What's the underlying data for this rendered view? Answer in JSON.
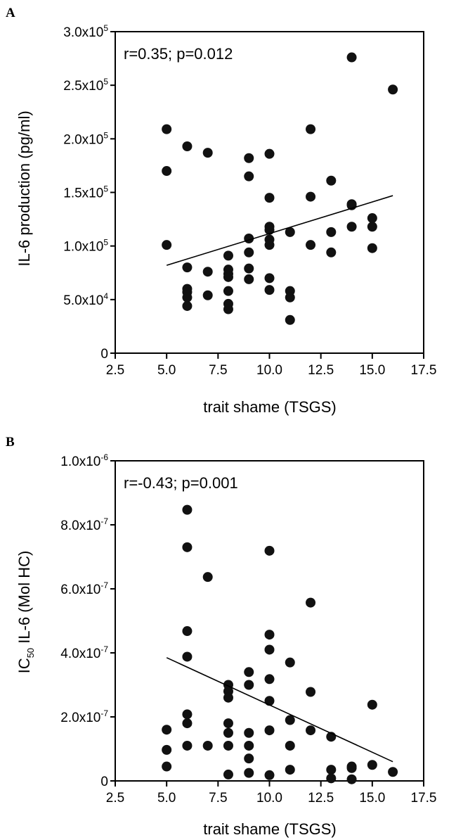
{
  "chart_data": [
    {
      "panel": "A",
      "type": "scatter",
      "annotation": "r=0.35; p=0.012",
      "xlabel": "trait shame (TSGS)",
      "ylabel": "IL-6 production (pg/ml)",
      "xlim": [
        2.5,
        17.5
      ],
      "ylim": [
        0,
        300000
      ],
      "xticks": [
        "2.5",
        "5.0",
        "7.5",
        "10.0",
        "12.5",
        "15.0",
        "17.5"
      ],
      "xtick_values": [
        2.5,
        5.0,
        7.5,
        10.0,
        12.5,
        15.0,
        17.5
      ],
      "yticks": [
        {
          "value": 0,
          "mant": "0",
          "exp": ""
        },
        {
          "value": 50000,
          "mant": "5.0x10",
          "exp": "4"
        },
        {
          "value": 100000,
          "mant": "1.0x10",
          "exp": "5"
        },
        {
          "value": 150000,
          "mant": "1.5x10",
          "exp": "5"
        },
        {
          "value": 200000,
          "mant": "2.0x10",
          "exp": "5"
        },
        {
          "value": 250000,
          "mant": "2.5x10",
          "exp": "5"
        },
        {
          "value": 300000,
          "mant": "3.0x10",
          "exp": "5"
        }
      ],
      "points": [
        [
          5,
          209000
        ],
        [
          5,
          170000
        ],
        [
          5,
          101000
        ],
        [
          6,
          193000
        ],
        [
          6,
          80000
        ],
        [
          6,
          60000
        ],
        [
          6,
          57000
        ],
        [
          6,
          52000
        ],
        [
          6,
          44000
        ],
        [
          7,
          187000
        ],
        [
          7,
          76000
        ],
        [
          7,
          54000
        ],
        [
          8,
          91000
        ],
        [
          8,
          78000
        ],
        [
          8,
          74000
        ],
        [
          8,
          71000
        ],
        [
          8,
          58000
        ],
        [
          8,
          46000
        ],
        [
          8,
          41000
        ],
        [
          9,
          182000
        ],
        [
          9,
          165000
        ],
        [
          9,
          107000
        ],
        [
          9,
          94000
        ],
        [
          9,
          79000
        ],
        [
          9,
          69000
        ],
        [
          10,
          186000
        ],
        [
          10,
          145000
        ],
        [
          10,
          118000
        ],
        [
          10,
          115000
        ],
        [
          10,
          106000
        ],
        [
          10,
          101000
        ],
        [
          10,
          70000
        ],
        [
          10,
          59000
        ],
        [
          11,
          113000
        ],
        [
          11,
          58000
        ],
        [
          11,
          52000
        ],
        [
          11,
          31000
        ],
        [
          12,
          209000
        ],
        [
          12,
          146000
        ],
        [
          12,
          101000
        ],
        [
          13,
          161000
        ],
        [
          13,
          113000
        ],
        [
          13,
          94000
        ],
        [
          14,
          276000
        ],
        [
          14,
          139000
        ],
        [
          14,
          138000
        ],
        [
          14,
          118000
        ],
        [
          15,
          126000
        ],
        [
          15,
          118000
        ],
        [
          15,
          98000
        ],
        [
          16,
          246000
        ]
      ],
      "regression": [
        [
          5,
          82000
        ],
        [
          16,
          147000
        ]
      ],
      "grid": false
    },
    {
      "panel": "B",
      "type": "scatter",
      "annotation": "r=-0.43; p=0.001",
      "xlabel": "trait shame (TSGS)",
      "ylabel_main": "IC",
      "ylabel_sub": "50",
      "ylabel_rest": " IL-6  (Mol HC)",
      "xlim": [
        2.5,
        17.5
      ],
      "ylim": [
        0,
        1e-06
      ],
      "xticks": [
        "2.5",
        "5.0",
        "7.5",
        "10.0",
        "12.5",
        "15.0",
        "17.5"
      ],
      "xtick_values": [
        2.5,
        5.0,
        7.5,
        10.0,
        12.5,
        15.0,
        17.5
      ],
      "yticks": [
        {
          "value": 0,
          "mant": "0",
          "exp": ""
        },
        {
          "value": 2e-07,
          "mant": "2.0x10",
          "exp": "-7"
        },
        {
          "value": 4e-07,
          "mant": "4.0x10",
          "exp": "-7"
        },
        {
          "value": 6e-07,
          "mant": "6.0x10",
          "exp": "-7"
        },
        {
          "value": 8e-07,
          "mant": "8.0x10",
          "exp": "-7"
        },
        {
          "value": 1e-06,
          "mant": "1.0x10",
          "exp": "-6"
        }
      ],
      "points": [
        [
          5,
          1.6e-07
        ],
        [
          5,
          9.7e-08
        ],
        [
          5,
          4.5e-08
        ],
        [
          6,
          8.47e-07
        ],
        [
          6,
          7.3e-07
        ],
        [
          6,
          4.68e-07
        ],
        [
          6,
          3.88e-07
        ],
        [
          6,
          2.08e-07
        ],
        [
          6,
          1.8e-07
        ],
        [
          6,
          1.1e-07
        ],
        [
          7,
          6.37e-07
        ],
        [
          7,
          1.1e-07
        ],
        [
          8,
          3e-07
        ],
        [
          8,
          2.8e-07
        ],
        [
          8,
          2.6e-07
        ],
        [
          8,
          1.8e-07
        ],
        [
          8,
          1.5e-07
        ],
        [
          8,
          1.1e-07
        ],
        [
          8,
          2e-08
        ],
        [
          9,
          3.4e-07
        ],
        [
          9,
          3e-07
        ],
        [
          9,
          1.5e-07
        ],
        [
          9,
          1.1e-07
        ],
        [
          9,
          7e-08
        ],
        [
          9,
          2.5e-08
        ],
        [
          10,
          7.19e-07
        ],
        [
          10,
          4.57e-07
        ],
        [
          10,
          4.1e-07
        ],
        [
          10,
          3.18e-07
        ],
        [
          10,
          2.5e-07
        ],
        [
          10,
          1.58e-07
        ],
        [
          10,
          1.8e-08
        ],
        [
          11,
          3.7e-07
        ],
        [
          11,
          1.9e-07
        ],
        [
          11,
          1.1e-07
        ],
        [
          11,
          3.5e-08
        ],
        [
          12,
          5.57e-07
        ],
        [
          12,
          2.78e-07
        ],
        [
          12,
          1.58e-07
        ],
        [
          13,
          1.38e-07
        ],
        [
          13,
          3.5e-08
        ],
        [
          13,
          8e-09
        ],
        [
          14,
          4.5e-08
        ],
        [
          14,
          4e-08
        ],
        [
          14,
          5e-09
        ],
        [
          15,
          2.38e-07
        ],
        [
          15,
          5e-08
        ],
        [
          16,
          2.8e-08
        ]
      ],
      "regression": [
        [
          5,
          3.85e-07
        ],
        [
          16,
          6e-08
        ]
      ],
      "grid": false
    }
  ]
}
